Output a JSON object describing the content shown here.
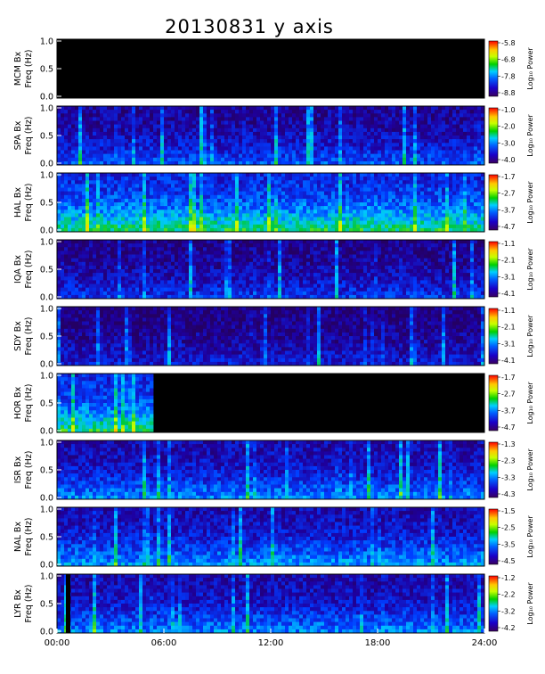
{
  "title": "20130831 y axis",
  "side_note": "spectrogram timestamp text (unreadable)",
  "chart_data": {
    "type": "heatmap",
    "x": {
      "label": "",
      "ticks": [
        "00:00",
        "06:00",
        "12:00",
        "18:00",
        "24:00"
      ],
      "range_hours": [
        0,
        24
      ]
    },
    "y_ticks": [
      "0.0",
      "0.5",
      "1.0"
    ],
    "y_range_hz": [
      0,
      1.0
    ],
    "colorbar_title": "Log₁₀ Power",
    "panels": [
      {
        "station": "MCM",
        "ylabel1": "MCM Bx",
        "ylabel2": "Freq (Hz)",
        "cb": [
          "-5.8",
          "-6.8",
          "-7.8",
          "-8.8"
        ],
        "data_hours": [
          0,
          0
        ],
        "level": 0.0
      },
      {
        "station": "SPA",
        "ylabel1": "SPA Bx",
        "ylabel2": "Freq (Hz)",
        "cb": [
          "-1.0",
          "-2.0",
          "-3.0",
          "-4.0"
        ],
        "data_hours": [
          0,
          24
        ],
        "level": 0.25
      },
      {
        "station": "HAL",
        "ylabel1": "HAL Bx",
        "ylabel2": "Freq (Hz)",
        "cb": [
          "-1.7",
          "-2.7",
          "-3.7",
          "-4.7"
        ],
        "data_hours": [
          0,
          24
        ],
        "level": 0.45
      },
      {
        "station": "IQA",
        "ylabel1": "IQA Bx",
        "ylabel2": "Freq (Hz)",
        "cb": [
          "-1.1",
          "-2.1",
          "-3.1",
          "-4.1"
        ],
        "data_hours": [
          0,
          24
        ],
        "level": 0.22
      },
      {
        "station": "SDY",
        "ylabel1": "SDY Bx",
        "ylabel2": "Freq (Hz)",
        "cb": [
          "-1.1",
          "-2.1",
          "-3.1",
          "-4.1"
        ],
        "data_hours": [
          0,
          24
        ],
        "level": 0.18
      },
      {
        "station": "HOR",
        "ylabel1": "HOR Bx",
        "ylabel2": "Freq (Hz)",
        "cb": [
          "-1.7",
          "-2.7",
          "-3.7",
          "-4.7"
        ],
        "data_hours": [
          0,
          5.4
        ],
        "level": 0.45
      },
      {
        "station": "ISR",
        "ylabel1": "ISR Bx",
        "ylabel2": "Freq (Hz)",
        "cb": [
          "-1.3",
          "-2.3",
          "-3.3",
          "-4.3"
        ],
        "data_hours": [
          0,
          24
        ],
        "level": 0.3
      },
      {
        "station": "NAL",
        "ylabel1": "NAL Bx",
        "ylabel2": "Freq (Hz)",
        "cb": [
          "-1.5",
          "-2.5",
          "-3.5",
          "-4.5"
        ],
        "data_hours": [
          0,
          24
        ],
        "level": 0.32
      },
      {
        "station": "LYR",
        "ylabel1": "LYR Bx",
        "ylabel2": "Freq (Hz)",
        "cb": [
          "-1.2",
          "-2.2",
          "-3.2",
          "-4.2"
        ],
        "data_hours": [
          0,
          24
        ],
        "level": 0.3,
        "gap_hours": [
          0.5,
          0.75
        ]
      }
    ]
  }
}
